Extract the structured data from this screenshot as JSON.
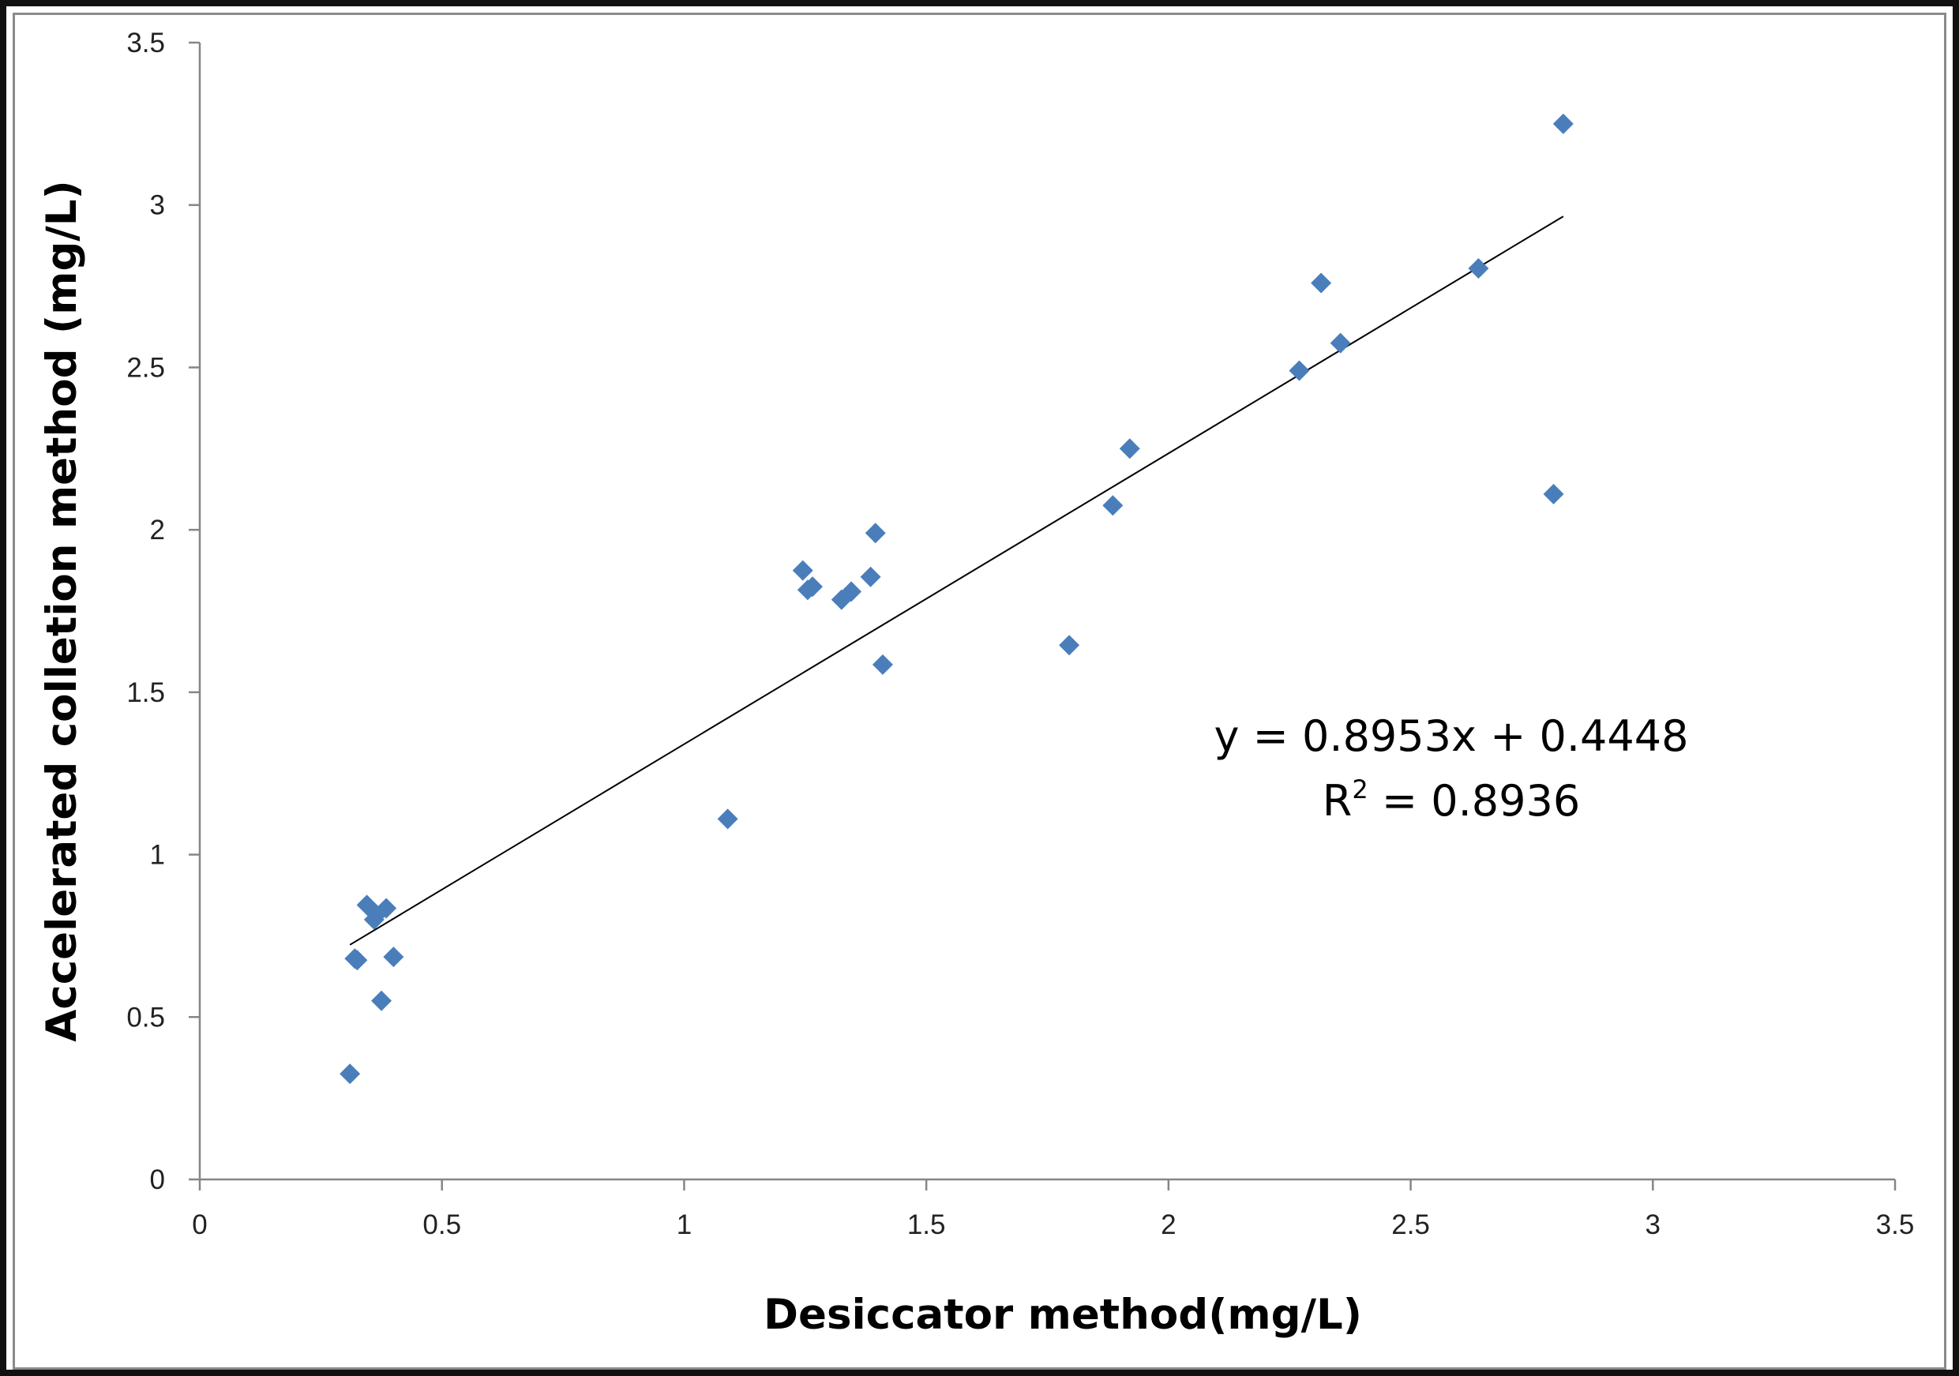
{
  "chart_data": {
    "type": "scatter",
    "xlabel": "Desiccator method(mg/L)",
    "ylabel": "Accelerated colletion method (mg/L)",
    "xlim": [
      0,
      3.5
    ],
    "ylim": [
      0,
      3.5
    ],
    "x_ticks": [
      "0",
      "0.5",
      "1",
      "1.5",
      "2",
      "2.5",
      "3",
      "3.5"
    ],
    "y_ticks": [
      "0",
      "0.5",
      "1",
      "1.5",
      "2",
      "2.5",
      "3",
      "3.5"
    ],
    "grid": false,
    "marker_color": "#4a7ebb",
    "points": [
      {
        "x": 0.31,
        "y": 0.325
      },
      {
        "x": 0.32,
        "y": 0.68
      },
      {
        "x": 0.325,
        "y": 0.675
      },
      {
        "x": 0.345,
        "y": 0.845
      },
      {
        "x": 0.36,
        "y": 0.8
      },
      {
        "x": 0.365,
        "y": 0.815
      },
      {
        "x": 0.375,
        "y": 0.55
      },
      {
        "x": 0.385,
        "y": 0.835
      },
      {
        "x": 0.4,
        "y": 0.685
      },
      {
        "x": 1.09,
        "y": 1.11
      },
      {
        "x": 1.245,
        "y": 1.875
      },
      {
        "x": 1.255,
        "y": 1.815
      },
      {
        "x": 1.265,
        "y": 1.825
      },
      {
        "x": 1.325,
        "y": 1.785
      },
      {
        "x": 1.345,
        "y": 1.81
      },
      {
        "x": 1.385,
        "y": 1.855
      },
      {
        "x": 1.395,
        "y": 1.99
      },
      {
        "x": 1.41,
        "y": 1.585
      },
      {
        "x": 1.795,
        "y": 1.645
      },
      {
        "x": 1.885,
        "y": 2.075
      },
      {
        "x": 1.92,
        "y": 2.25
      },
      {
        "x": 2.27,
        "y": 2.49
      },
      {
        "x": 2.315,
        "y": 2.76
      },
      {
        "x": 2.355,
        "y": 2.575
      },
      {
        "x": 2.64,
        "y": 2.805
      },
      {
        "x": 2.795,
        "y": 2.11
      },
      {
        "x": 2.815,
        "y": 3.25
      }
    ],
    "trendline": {
      "slope": 0.8953,
      "intercept": 0.4448,
      "x_range": [
        0.31,
        2.815
      ],
      "equation_text": "y = 0.8953x + 0.4448",
      "r2_prefix": "R",
      "r2_superscript": "2",
      "r2_value_text": " = 0.8936"
    }
  }
}
